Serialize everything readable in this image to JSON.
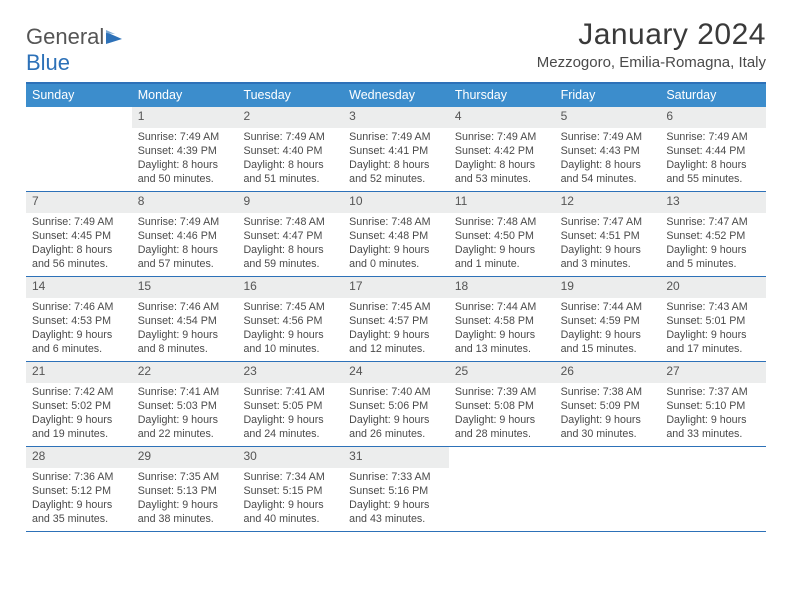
{
  "brand": {
    "name1": "General",
    "name2": "Blue"
  },
  "title": "January 2024",
  "location": "Mezzogoro, Emilia-Romagna, Italy",
  "colors": {
    "header_bg": "#3c8dcc",
    "header_text": "#ffffff",
    "rule": "#2d71b8",
    "daynum_bg": "#eceded",
    "body_text": "#4a4a4a",
    "logo_accent": "#2d71b8"
  },
  "typography": {
    "title_fontsize": 30,
    "location_fontsize": 15,
    "dow_fontsize": 12.5,
    "cell_fontsize": 10.7,
    "daynum_fontsize": 12
  },
  "days_of_week": [
    "Sunday",
    "Monday",
    "Tuesday",
    "Wednesday",
    "Thursday",
    "Friday",
    "Saturday"
  ],
  "weeks": [
    [
      null,
      {
        "n": "1",
        "sr": "Sunrise: 7:49 AM",
        "ss": "Sunset: 4:39 PM",
        "d1": "Daylight: 8 hours",
        "d2": "and 50 minutes."
      },
      {
        "n": "2",
        "sr": "Sunrise: 7:49 AM",
        "ss": "Sunset: 4:40 PM",
        "d1": "Daylight: 8 hours",
        "d2": "and 51 minutes."
      },
      {
        "n": "3",
        "sr": "Sunrise: 7:49 AM",
        "ss": "Sunset: 4:41 PM",
        "d1": "Daylight: 8 hours",
        "d2": "and 52 minutes."
      },
      {
        "n": "4",
        "sr": "Sunrise: 7:49 AM",
        "ss": "Sunset: 4:42 PM",
        "d1": "Daylight: 8 hours",
        "d2": "and 53 minutes."
      },
      {
        "n": "5",
        "sr": "Sunrise: 7:49 AM",
        "ss": "Sunset: 4:43 PM",
        "d1": "Daylight: 8 hours",
        "d2": "and 54 minutes."
      },
      {
        "n": "6",
        "sr": "Sunrise: 7:49 AM",
        "ss": "Sunset: 4:44 PM",
        "d1": "Daylight: 8 hours",
        "d2": "and 55 minutes."
      }
    ],
    [
      {
        "n": "7",
        "sr": "Sunrise: 7:49 AM",
        "ss": "Sunset: 4:45 PM",
        "d1": "Daylight: 8 hours",
        "d2": "and 56 minutes."
      },
      {
        "n": "8",
        "sr": "Sunrise: 7:49 AM",
        "ss": "Sunset: 4:46 PM",
        "d1": "Daylight: 8 hours",
        "d2": "and 57 minutes."
      },
      {
        "n": "9",
        "sr": "Sunrise: 7:48 AM",
        "ss": "Sunset: 4:47 PM",
        "d1": "Daylight: 8 hours",
        "d2": "and 59 minutes."
      },
      {
        "n": "10",
        "sr": "Sunrise: 7:48 AM",
        "ss": "Sunset: 4:48 PM",
        "d1": "Daylight: 9 hours",
        "d2": "and 0 minutes."
      },
      {
        "n": "11",
        "sr": "Sunrise: 7:48 AM",
        "ss": "Sunset: 4:50 PM",
        "d1": "Daylight: 9 hours",
        "d2": "and 1 minute."
      },
      {
        "n": "12",
        "sr": "Sunrise: 7:47 AM",
        "ss": "Sunset: 4:51 PM",
        "d1": "Daylight: 9 hours",
        "d2": "and 3 minutes."
      },
      {
        "n": "13",
        "sr": "Sunrise: 7:47 AM",
        "ss": "Sunset: 4:52 PM",
        "d1": "Daylight: 9 hours",
        "d2": "and 5 minutes."
      }
    ],
    [
      {
        "n": "14",
        "sr": "Sunrise: 7:46 AM",
        "ss": "Sunset: 4:53 PM",
        "d1": "Daylight: 9 hours",
        "d2": "and 6 minutes."
      },
      {
        "n": "15",
        "sr": "Sunrise: 7:46 AM",
        "ss": "Sunset: 4:54 PM",
        "d1": "Daylight: 9 hours",
        "d2": "and 8 minutes."
      },
      {
        "n": "16",
        "sr": "Sunrise: 7:45 AM",
        "ss": "Sunset: 4:56 PM",
        "d1": "Daylight: 9 hours",
        "d2": "and 10 minutes."
      },
      {
        "n": "17",
        "sr": "Sunrise: 7:45 AM",
        "ss": "Sunset: 4:57 PM",
        "d1": "Daylight: 9 hours",
        "d2": "and 12 minutes."
      },
      {
        "n": "18",
        "sr": "Sunrise: 7:44 AM",
        "ss": "Sunset: 4:58 PM",
        "d1": "Daylight: 9 hours",
        "d2": "and 13 minutes."
      },
      {
        "n": "19",
        "sr": "Sunrise: 7:44 AM",
        "ss": "Sunset: 4:59 PM",
        "d1": "Daylight: 9 hours",
        "d2": "and 15 minutes."
      },
      {
        "n": "20",
        "sr": "Sunrise: 7:43 AM",
        "ss": "Sunset: 5:01 PM",
        "d1": "Daylight: 9 hours",
        "d2": "and 17 minutes."
      }
    ],
    [
      {
        "n": "21",
        "sr": "Sunrise: 7:42 AM",
        "ss": "Sunset: 5:02 PM",
        "d1": "Daylight: 9 hours",
        "d2": "and 19 minutes."
      },
      {
        "n": "22",
        "sr": "Sunrise: 7:41 AM",
        "ss": "Sunset: 5:03 PM",
        "d1": "Daylight: 9 hours",
        "d2": "and 22 minutes."
      },
      {
        "n": "23",
        "sr": "Sunrise: 7:41 AM",
        "ss": "Sunset: 5:05 PM",
        "d1": "Daylight: 9 hours",
        "d2": "and 24 minutes."
      },
      {
        "n": "24",
        "sr": "Sunrise: 7:40 AM",
        "ss": "Sunset: 5:06 PM",
        "d1": "Daylight: 9 hours",
        "d2": "and 26 minutes."
      },
      {
        "n": "25",
        "sr": "Sunrise: 7:39 AM",
        "ss": "Sunset: 5:08 PM",
        "d1": "Daylight: 9 hours",
        "d2": "and 28 minutes."
      },
      {
        "n": "26",
        "sr": "Sunrise: 7:38 AM",
        "ss": "Sunset: 5:09 PM",
        "d1": "Daylight: 9 hours",
        "d2": "and 30 minutes."
      },
      {
        "n": "27",
        "sr": "Sunrise: 7:37 AM",
        "ss": "Sunset: 5:10 PM",
        "d1": "Daylight: 9 hours",
        "d2": "and 33 minutes."
      }
    ],
    [
      {
        "n": "28",
        "sr": "Sunrise: 7:36 AM",
        "ss": "Sunset: 5:12 PM",
        "d1": "Daylight: 9 hours",
        "d2": "and 35 minutes."
      },
      {
        "n": "29",
        "sr": "Sunrise: 7:35 AM",
        "ss": "Sunset: 5:13 PM",
        "d1": "Daylight: 9 hours",
        "d2": "and 38 minutes."
      },
      {
        "n": "30",
        "sr": "Sunrise: 7:34 AM",
        "ss": "Sunset: 5:15 PM",
        "d1": "Daylight: 9 hours",
        "d2": "and 40 minutes."
      },
      {
        "n": "31",
        "sr": "Sunrise: 7:33 AM",
        "ss": "Sunset: 5:16 PM",
        "d1": "Daylight: 9 hours",
        "d2": "and 43 minutes."
      },
      null,
      null,
      null
    ]
  ]
}
